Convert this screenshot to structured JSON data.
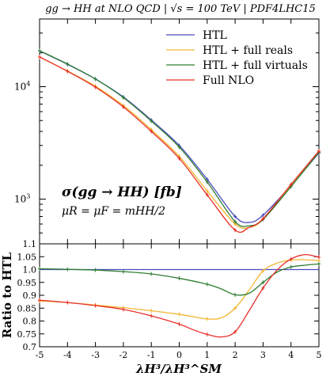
{
  "chart_data": [
    {
      "type": "line",
      "panel": "upper",
      "title": "gg → HH at NLO QCD | √s = 100 TeV | PDF4LHC15",
      "ylabel": "",
      "yscale": "log",
      "xlim": [
        -5,
        5
      ],
      "ylim": [
        400,
        40000
      ],
      "ytick_labels": [
        "10^3",
        "10^4"
      ],
      "annotation_main": "σ(gg → HH) [fb]",
      "annotation_scale": "μR = μF = mHH/2",
      "grid": false,
      "legend": "top-right",
      "series": [
        {
          "name": "HTL",
          "color": "#4b4bbf",
          "x": [
            -5,
            -4,
            -3,
            -2,
            -1,
            0,
            1,
            2,
            2.5,
            3,
            4,
            5
          ],
          "y": [
            20800,
            15800,
            11700,
            8100,
            5050,
            3000,
            1500,
            700,
            620,
            720,
            1320,
            2570
          ]
        },
        {
          "name": "HTL + full reals",
          "color": "#f2b632",
          "x": [
            -5,
            -4,
            -3,
            -2,
            -1,
            0,
            1,
            2,
            2.5,
            3,
            4,
            5
          ],
          "y": [
            18300,
            13800,
            10100,
            6800,
            4150,
            2400,
            1180,
            600,
            560,
            660,
            1330,
            2640
          ]
        },
        {
          "name": "HTL + full virtuals",
          "color": "#2e7d32",
          "x": [
            -5,
            -4,
            -3,
            -2,
            -1,
            0,
            1,
            2,
            2.5,
            3,
            4,
            5
          ],
          "y": [
            20900,
            15900,
            11700,
            8000,
            4950,
            2900,
            1420,
            630,
            580,
            660,
            1290,
            2610
          ]
        },
        {
          "name": "Full NLO",
          "color": "#e8302a",
          "x": [
            -5,
            -4,
            -3,
            -2,
            -1,
            0,
            1,
            2,
            2.5,
            3,
            4,
            5
          ],
          "y": [
            18400,
            13700,
            9900,
            6600,
            4000,
            2300,
            1090,
            530,
            560,
            670,
            1350,
            2680
          ]
        }
      ]
    },
    {
      "type": "line",
      "panel": "lower",
      "title": "",
      "xlabel": "λH³/λH³^SM",
      "ylabel": "Ratio to HTL",
      "xlim": [
        -5,
        5
      ],
      "ylim": [
        0.7,
        1.1
      ],
      "xticks": [
        -5,
        -4,
        -3,
        -2,
        -1,
        0,
        1,
        2,
        3,
        4,
        5
      ],
      "yticks": [
        0.7,
        0.75,
        0.8,
        0.85,
        0.9,
        0.95,
        1.0,
        1.05,
        1.1
      ],
      "series": [
        {
          "name": "HTL",
          "color": "#4b4bbf",
          "x": [
            -5,
            5
          ],
          "y": [
            1.0,
            1.0
          ]
        },
        {
          "name": "HTL + full reals",
          "color": "#f2b632",
          "x": [
            -5,
            -4,
            -3,
            -2,
            -1,
            0,
            0.5,
            1,
            1.5,
            2,
            2.5,
            3,
            3.5,
            4,
            4.5,
            5
          ],
          "y": [
            0.878,
            0.872,
            0.862,
            0.852,
            0.84,
            0.826,
            0.817,
            0.808,
            0.812,
            0.85,
            0.92,
            0.995,
            1.025,
            1.037,
            1.038,
            1.035
          ]
        },
        {
          "name": "HTL + full virtuals",
          "color": "#2e7d32",
          "x": [
            -5,
            -4,
            -3,
            -2,
            -1,
            0,
            1,
            1.5,
            2,
            2.5,
            3,
            3.5,
            4,
            4.5,
            5
          ],
          "y": [
            1.003,
            1.001,
            0.998,
            0.992,
            0.983,
            0.966,
            0.943,
            0.925,
            0.902,
            0.908,
            0.95,
            0.99,
            1.01,
            1.017,
            1.022
          ]
        },
        {
          "name": "Full NLO",
          "color": "#e8302a",
          "x": [
            -5,
            -4,
            -3,
            -2,
            -1,
            0,
            0.5,
            1,
            1.5,
            2,
            2.5,
            3,
            3.5,
            4,
            4.5,
            5
          ],
          "y": [
            0.881,
            0.872,
            0.86,
            0.845,
            0.82,
            0.788,
            0.766,
            0.748,
            0.738,
            0.758,
            0.84,
            0.928,
            0.998,
            1.041,
            1.058,
            1.048
          ]
        }
      ]
    }
  ]
}
